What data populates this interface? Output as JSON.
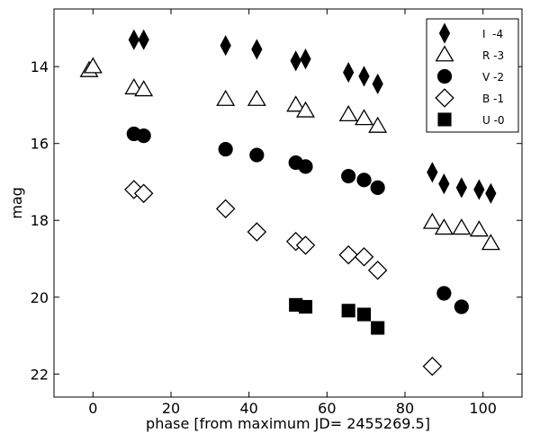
{
  "chart_data": {
    "type": "scatter",
    "title": "",
    "xlabel": "phase [from maximum JD= 2455269.5]",
    "ylabel": "mag",
    "xlim": [
      -10,
      110
    ],
    "ylim": [
      22.6,
      12.5
    ],
    "y_inverted": true,
    "xticks": [
      0,
      20,
      40,
      60,
      80,
      100
    ],
    "yticks": [
      14,
      16,
      18,
      20,
      22
    ],
    "grid": false,
    "legend_position": "top-right",
    "series": [
      {
        "name": "I  -4",
        "marker": "thin_diamond",
        "filled": true,
        "points": [
          [
            10.5,
            13.3
          ],
          [
            13.0,
            13.3
          ],
          [
            34.0,
            13.45
          ],
          [
            42.0,
            13.55
          ],
          [
            52.0,
            13.85
          ],
          [
            54.5,
            13.8
          ],
          [
            65.5,
            14.15
          ],
          [
            69.5,
            14.25
          ],
          [
            73.0,
            14.45
          ],
          [
            87.0,
            16.75
          ],
          [
            90.0,
            17.05
          ],
          [
            94.5,
            17.15
          ],
          [
            99.0,
            17.2
          ],
          [
            102.0,
            17.3
          ]
        ]
      },
      {
        "name": "R -3",
        "marker": "triangle",
        "filled": false,
        "points": [
          [
            -1.0,
            14.1
          ],
          [
            0.0,
            14.0
          ],
          [
            10.5,
            14.55
          ],
          [
            13.0,
            14.6
          ],
          [
            34.0,
            14.85
          ],
          [
            42.0,
            14.85
          ],
          [
            52.0,
            15.0
          ],
          [
            54.5,
            15.15
          ],
          [
            65.5,
            15.25
          ],
          [
            69.5,
            15.35
          ],
          [
            73.0,
            15.55
          ],
          [
            87.0,
            18.05
          ],
          [
            90.0,
            18.2
          ],
          [
            94.5,
            18.2
          ],
          [
            99.0,
            18.25
          ],
          [
            102.0,
            18.6
          ]
        ]
      },
      {
        "name": "V -2",
        "marker": "circle",
        "filled": true,
        "points": [
          [
            10.5,
            15.75
          ],
          [
            13.0,
            15.8
          ],
          [
            34.0,
            16.15
          ],
          [
            42.0,
            16.3
          ],
          [
            52.0,
            16.5
          ],
          [
            54.5,
            16.6
          ],
          [
            65.5,
            16.85
          ],
          [
            69.5,
            16.95
          ],
          [
            73.0,
            17.15
          ],
          [
            90.0,
            19.9
          ],
          [
            94.5,
            20.25
          ]
        ]
      },
      {
        "name": "B -1",
        "marker": "diamond",
        "filled": false,
        "points": [
          [
            10.5,
            17.2
          ],
          [
            13.0,
            17.3
          ],
          [
            34.0,
            17.7
          ],
          [
            42.0,
            18.3
          ],
          [
            52.0,
            18.55
          ],
          [
            54.5,
            18.65
          ],
          [
            65.5,
            18.9
          ],
          [
            69.5,
            18.95
          ],
          [
            73.0,
            19.3
          ],
          [
            87.0,
            21.8
          ]
        ]
      },
      {
        "name": "U -0",
        "marker": "square",
        "filled": true,
        "points": [
          [
            52.0,
            20.2
          ],
          [
            54.5,
            20.25
          ],
          [
            65.5,
            20.35
          ],
          [
            69.5,
            20.45
          ],
          [
            73.0,
            20.8
          ]
        ]
      }
    ]
  }
}
